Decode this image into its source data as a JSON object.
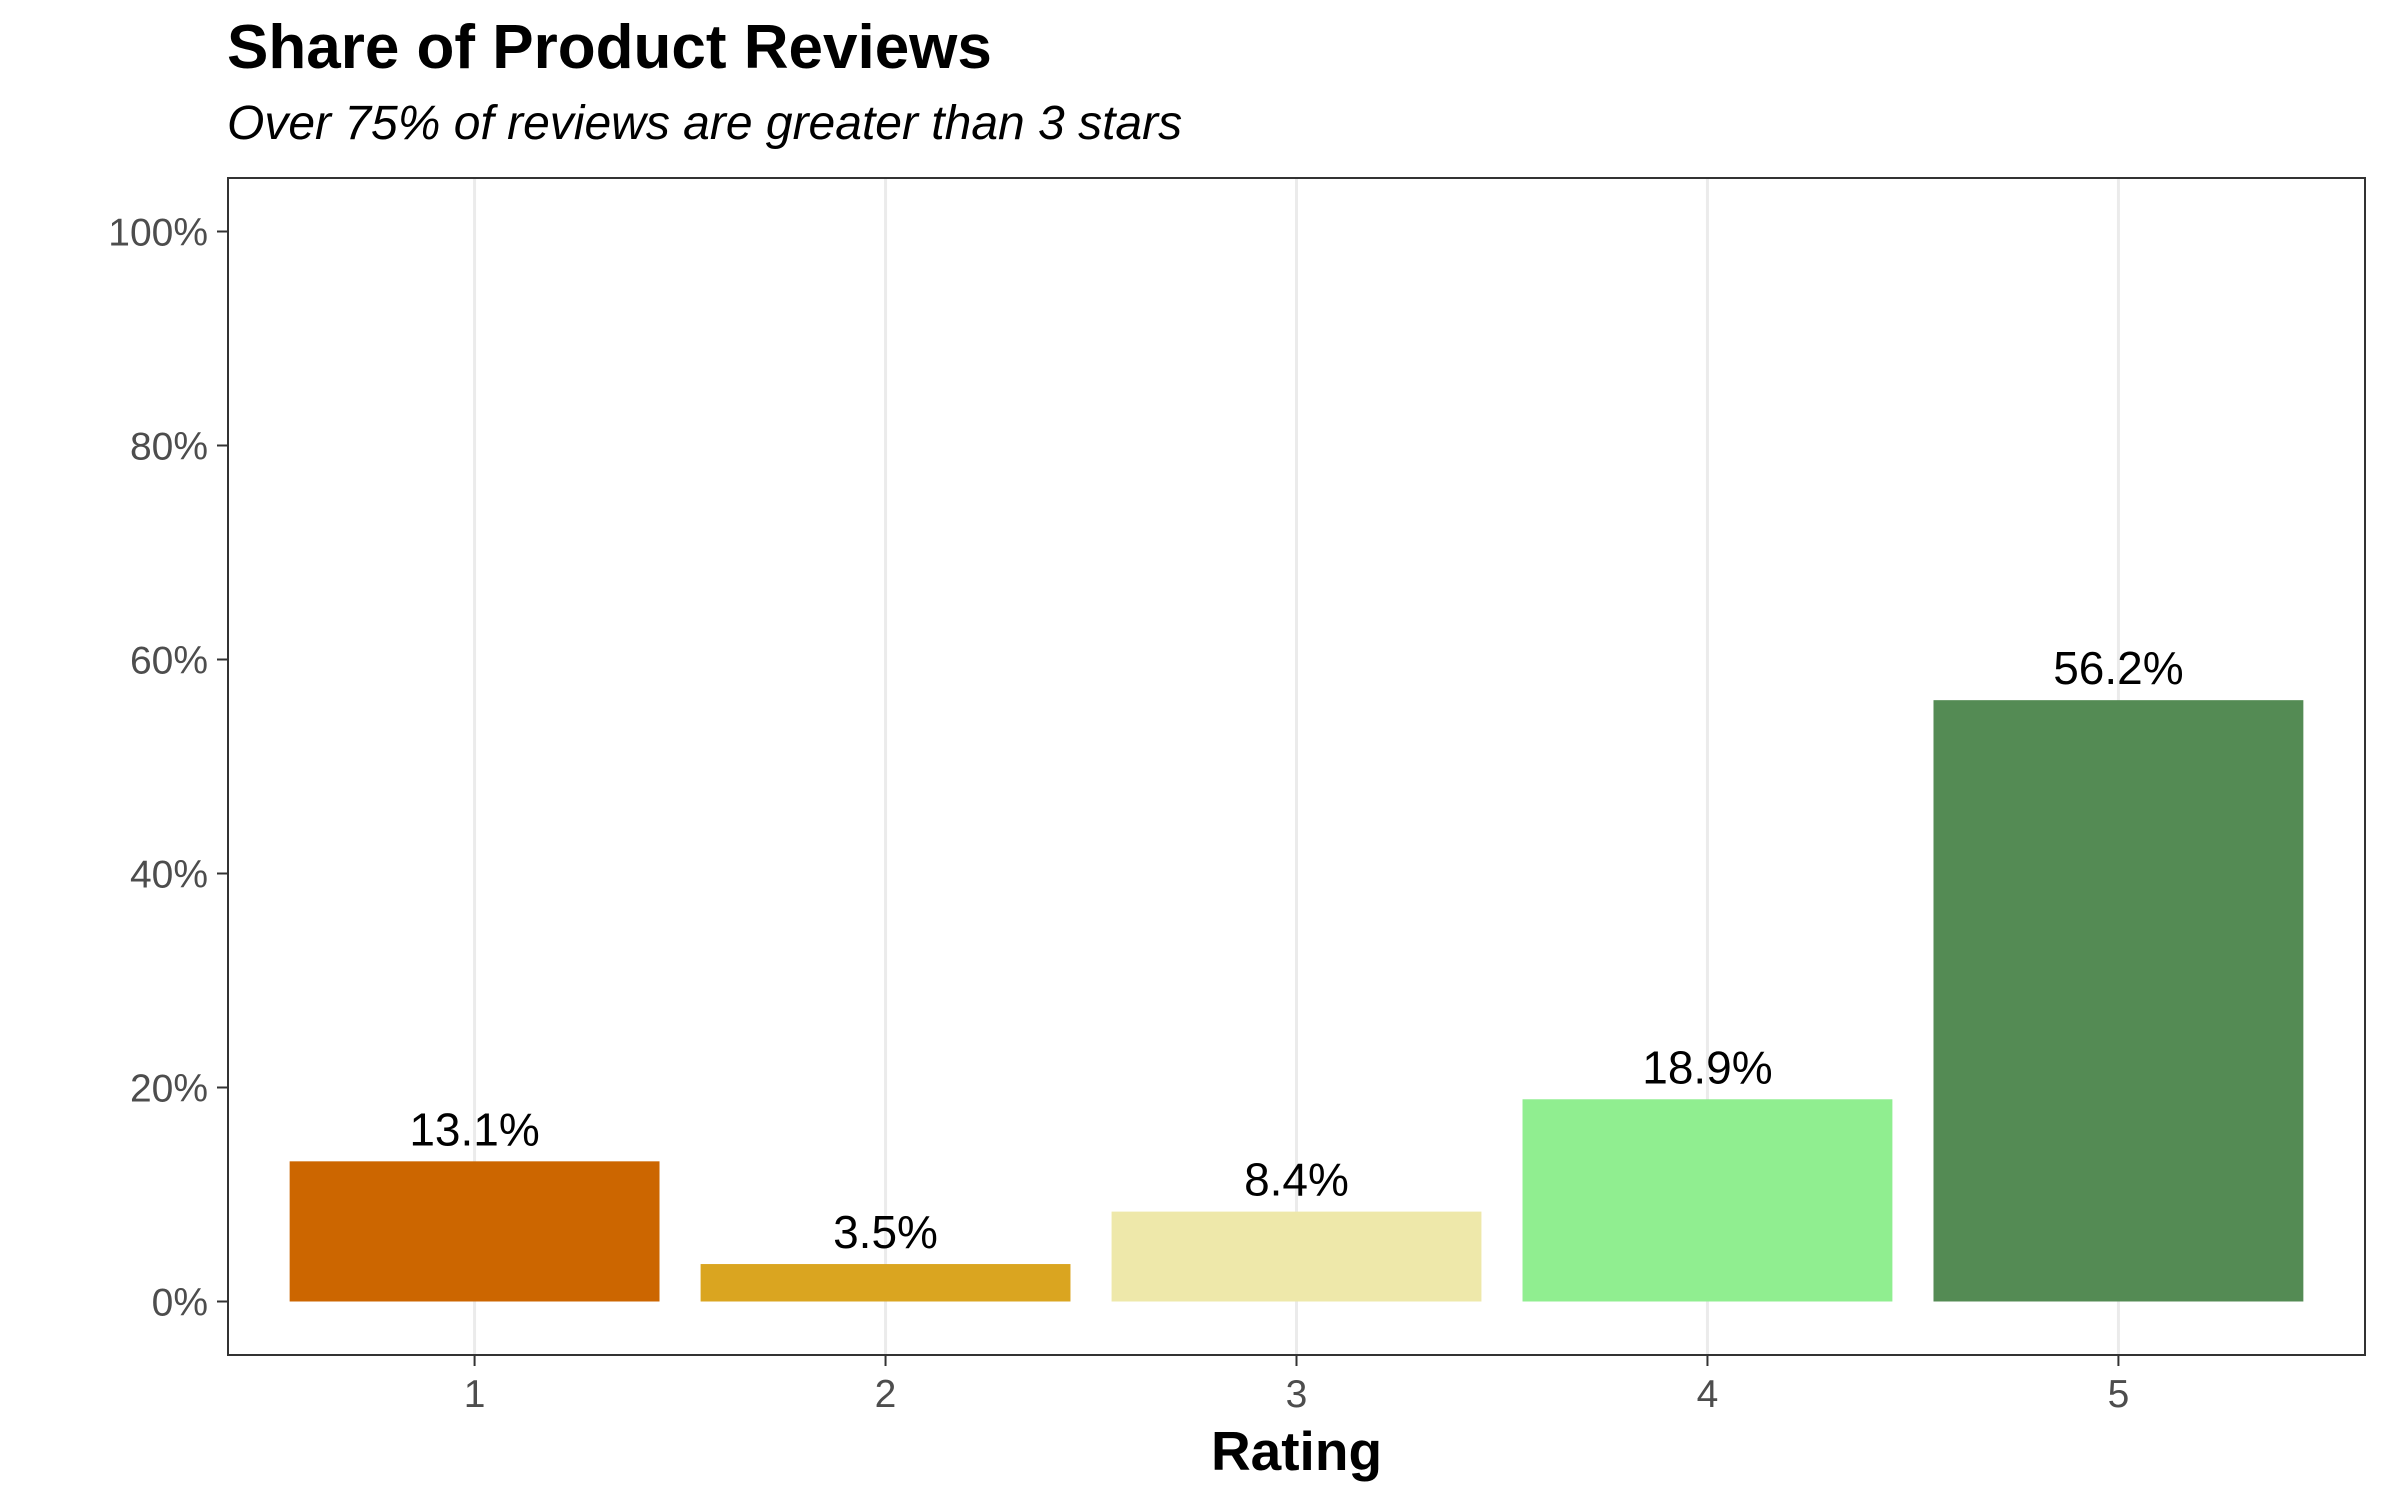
{
  "chart_data": {
    "type": "bar",
    "title": "Share of Product Reviews",
    "subtitle": "Over 75% of reviews are greater than 3 stars",
    "xlabel": "Rating",
    "ylabel": "",
    "categories": [
      "1",
      "2",
      "3",
      "4",
      "5"
    ],
    "values": [
      13.1,
      3.5,
      8.4,
      18.9,
      56.2
    ],
    "value_labels": [
      "13.1%",
      "3.5%",
      "8.4%",
      "18.9%",
      "56.2%"
    ],
    "colors": [
      "#CC6600",
      "#DAA520",
      "#EEE8AA",
      "#90EE90",
      "#548B54"
    ],
    "ylim": [
      -5,
      105
    ],
    "y_ticks": [
      0,
      20,
      40,
      60,
      80,
      100
    ],
    "y_tick_labels": [
      "0%",
      "20%",
      "40%",
      "60%",
      "80%",
      "100%"
    ],
    "grid": "vertical major lines only",
    "legend": "none"
  }
}
